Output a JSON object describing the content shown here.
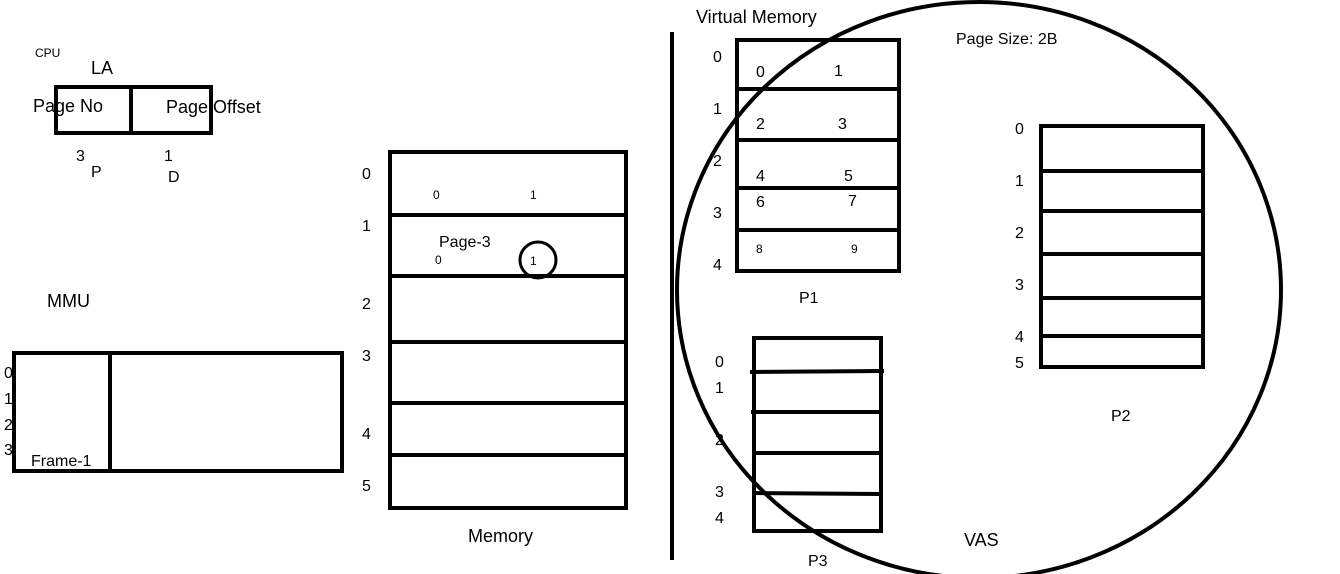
{
  "cpu": {
    "label": "CPU",
    "la_label": "LA",
    "page_no_label": "Page No",
    "page_offset_label": "Page Offset",
    "page_value": "3",
    "page_symbol": "P",
    "offset_value": "1",
    "offset_symbol": "D"
  },
  "mmu": {
    "label": "MMU",
    "row_numbers": [
      "0",
      "1",
      "2",
      "3"
    ],
    "frame_label": "Frame-1"
  },
  "memory": {
    "label": "Memory",
    "frame_numbers": [
      "0",
      "1",
      "2",
      "3",
      "4",
      "5"
    ],
    "frame0_cells": [
      "0",
      "1"
    ],
    "frame1_page_label": "Page-3",
    "frame1_cells": [
      "0",
      "1"
    ]
  },
  "virtual_memory": {
    "title": "Virtual Memory",
    "page_size": "Page Size: 2B",
    "vas_label": "VAS",
    "p1": {
      "label": "P1",
      "page_numbers": [
        "0",
        "1",
        "2",
        "3",
        "4"
      ],
      "cells": [
        [
          "0",
          "1"
        ],
        [
          "2",
          "3"
        ],
        [
          "4",
          "5"
        ],
        [
          "6",
          "7"
        ],
        [
          "8",
          "9"
        ]
      ]
    },
    "p2": {
      "label": "P2",
      "page_numbers": [
        "0",
        "1",
        "2",
        "3",
        "4",
        "5"
      ]
    },
    "p3": {
      "label": "P3",
      "page_numbers": [
        "0",
        "1",
        "2",
        "3",
        "4"
      ]
    }
  }
}
